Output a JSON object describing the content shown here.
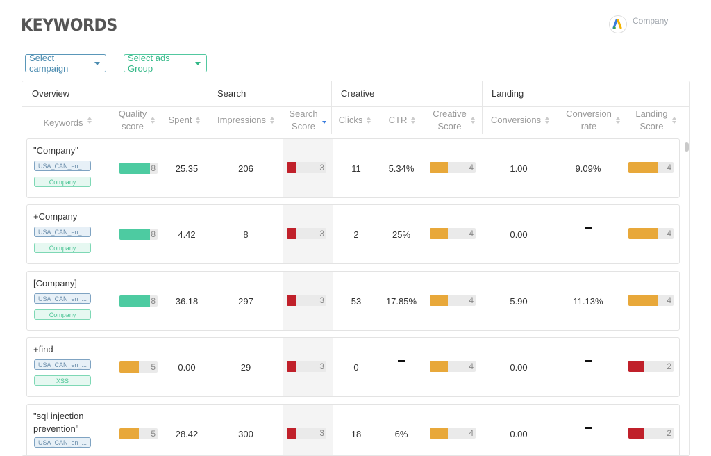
{
  "page": {
    "title": "KEYWORDS",
    "company": "Company"
  },
  "filters": {
    "campaign": "Select campaign",
    "ads_group": "Select ads Group"
  },
  "colors": {
    "green": "#4dcba1",
    "orange": "#e8a83a",
    "red": "#c0202a",
    "campaign_border": "#5a97b9",
    "adsgroup_border": "#52c8a0",
    "sort_active": "#3b7ddd"
  },
  "groups": {
    "overview": "Overview",
    "search": "Search",
    "creative": "Creative",
    "landing": "Landing"
  },
  "columns": {
    "keywords": "Keywords",
    "quality_1": "Quality",
    "quality_2": "score",
    "spent": "Spent",
    "impressions": "Impressions",
    "search_1": "Search",
    "search_2": "Score",
    "clicks": "Clicks",
    "ctr": "CTR",
    "creative_1": "Creative",
    "creative_2": "Score",
    "conversions": "Conversions",
    "convrate_1": "Conversion",
    "convrate_2": "rate",
    "landing_1": "Landing",
    "landing_2": "Score"
  },
  "rows": [
    {
      "keyword": "\"Company\"",
      "tag1": "USA_CAN_en_...",
      "tag2": "Company",
      "quality": "8",
      "quality_color": "green",
      "spent": "25.35",
      "impressions": "206",
      "search_score": "3",
      "clicks": "11",
      "ctr": "5.34%",
      "creative_score": "4",
      "conversions": "1.00",
      "conv_rate": "9.09%",
      "landing_score": "4",
      "landing_color": "orange"
    },
    {
      "keyword": "+Company",
      "tag1": "USA_CAN_en_...",
      "tag2": "Company",
      "quality": "8",
      "quality_color": "green",
      "spent": "4.42",
      "impressions": "8",
      "search_score": "3",
      "clicks": "2",
      "ctr": "25%",
      "creative_score": "4",
      "conversions": "0.00",
      "conv_rate": "",
      "landing_score": "4",
      "landing_color": "orange"
    },
    {
      "keyword": "[Company]",
      "tag1": "USA_CAN_en_...",
      "tag2": "Company",
      "quality": "8",
      "quality_color": "green",
      "spent": "36.18",
      "impressions": "297",
      "search_score": "3",
      "clicks": "53",
      "ctr": "17.85%",
      "creative_score": "4",
      "conversions": "5.90",
      "conv_rate": "11.13%",
      "landing_score": "4",
      "landing_color": "orange"
    },
    {
      "keyword": "+find",
      "tag1": "USA_CAN_en_...",
      "tag2": "XSS",
      "quality": "5",
      "quality_color": "orange",
      "spent": "0.00",
      "impressions": "29",
      "search_score": "3",
      "clicks": "0",
      "ctr": "",
      "creative_score": "4",
      "conversions": "0.00",
      "conv_rate": "",
      "landing_score": "2",
      "landing_color": "red"
    },
    {
      "keyword": "\"sql injection prevention\"",
      "tag1": "USA_CAN_en_...",
      "tag2": "",
      "quality": "5",
      "quality_color": "orange",
      "spent": "28.42",
      "impressions": "300",
      "search_score": "3",
      "clicks": "18",
      "ctr": "6%",
      "creative_score": "4",
      "conversions": "0.00",
      "conv_rate": "",
      "landing_score": "2",
      "landing_color": "red"
    }
  ]
}
